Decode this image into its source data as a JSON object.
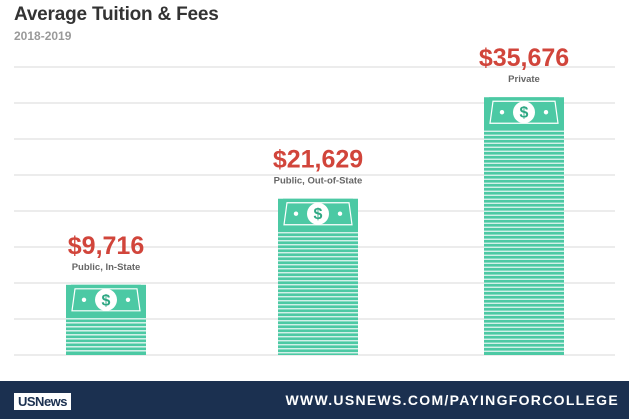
{
  "header": {
    "title": "Average Tuition & Fees",
    "subtitle": "2018-2019"
  },
  "footer": {
    "logo_text": "USNews",
    "url": "WWW.USNEWS.COM/PAYINGFORCOLLEGE"
  },
  "colors": {
    "stack": "#4cc9a4",
    "stack_dark": "#2fa884",
    "value_text": "#d1453b",
    "label_text": "#666666",
    "grid": "#d9d9d9",
    "footer_bg": "#1b3050"
  },
  "icon": "dollar-bill-icon",
  "chart_data": {
    "type": "bar",
    "title": "Average Tuition & Fees",
    "subtitle": "2018-2019",
    "categories": [
      "Public, In-State",
      "Public, Out-of-State",
      "Private"
    ],
    "values": [
      9716,
      21629,
      35676
    ],
    "value_labels": [
      "$9,716",
      "$21,629",
      "$35,676"
    ],
    "ylim": [
      0,
      40000
    ],
    "grid": true,
    "xlabel": "",
    "ylabel": ""
  }
}
